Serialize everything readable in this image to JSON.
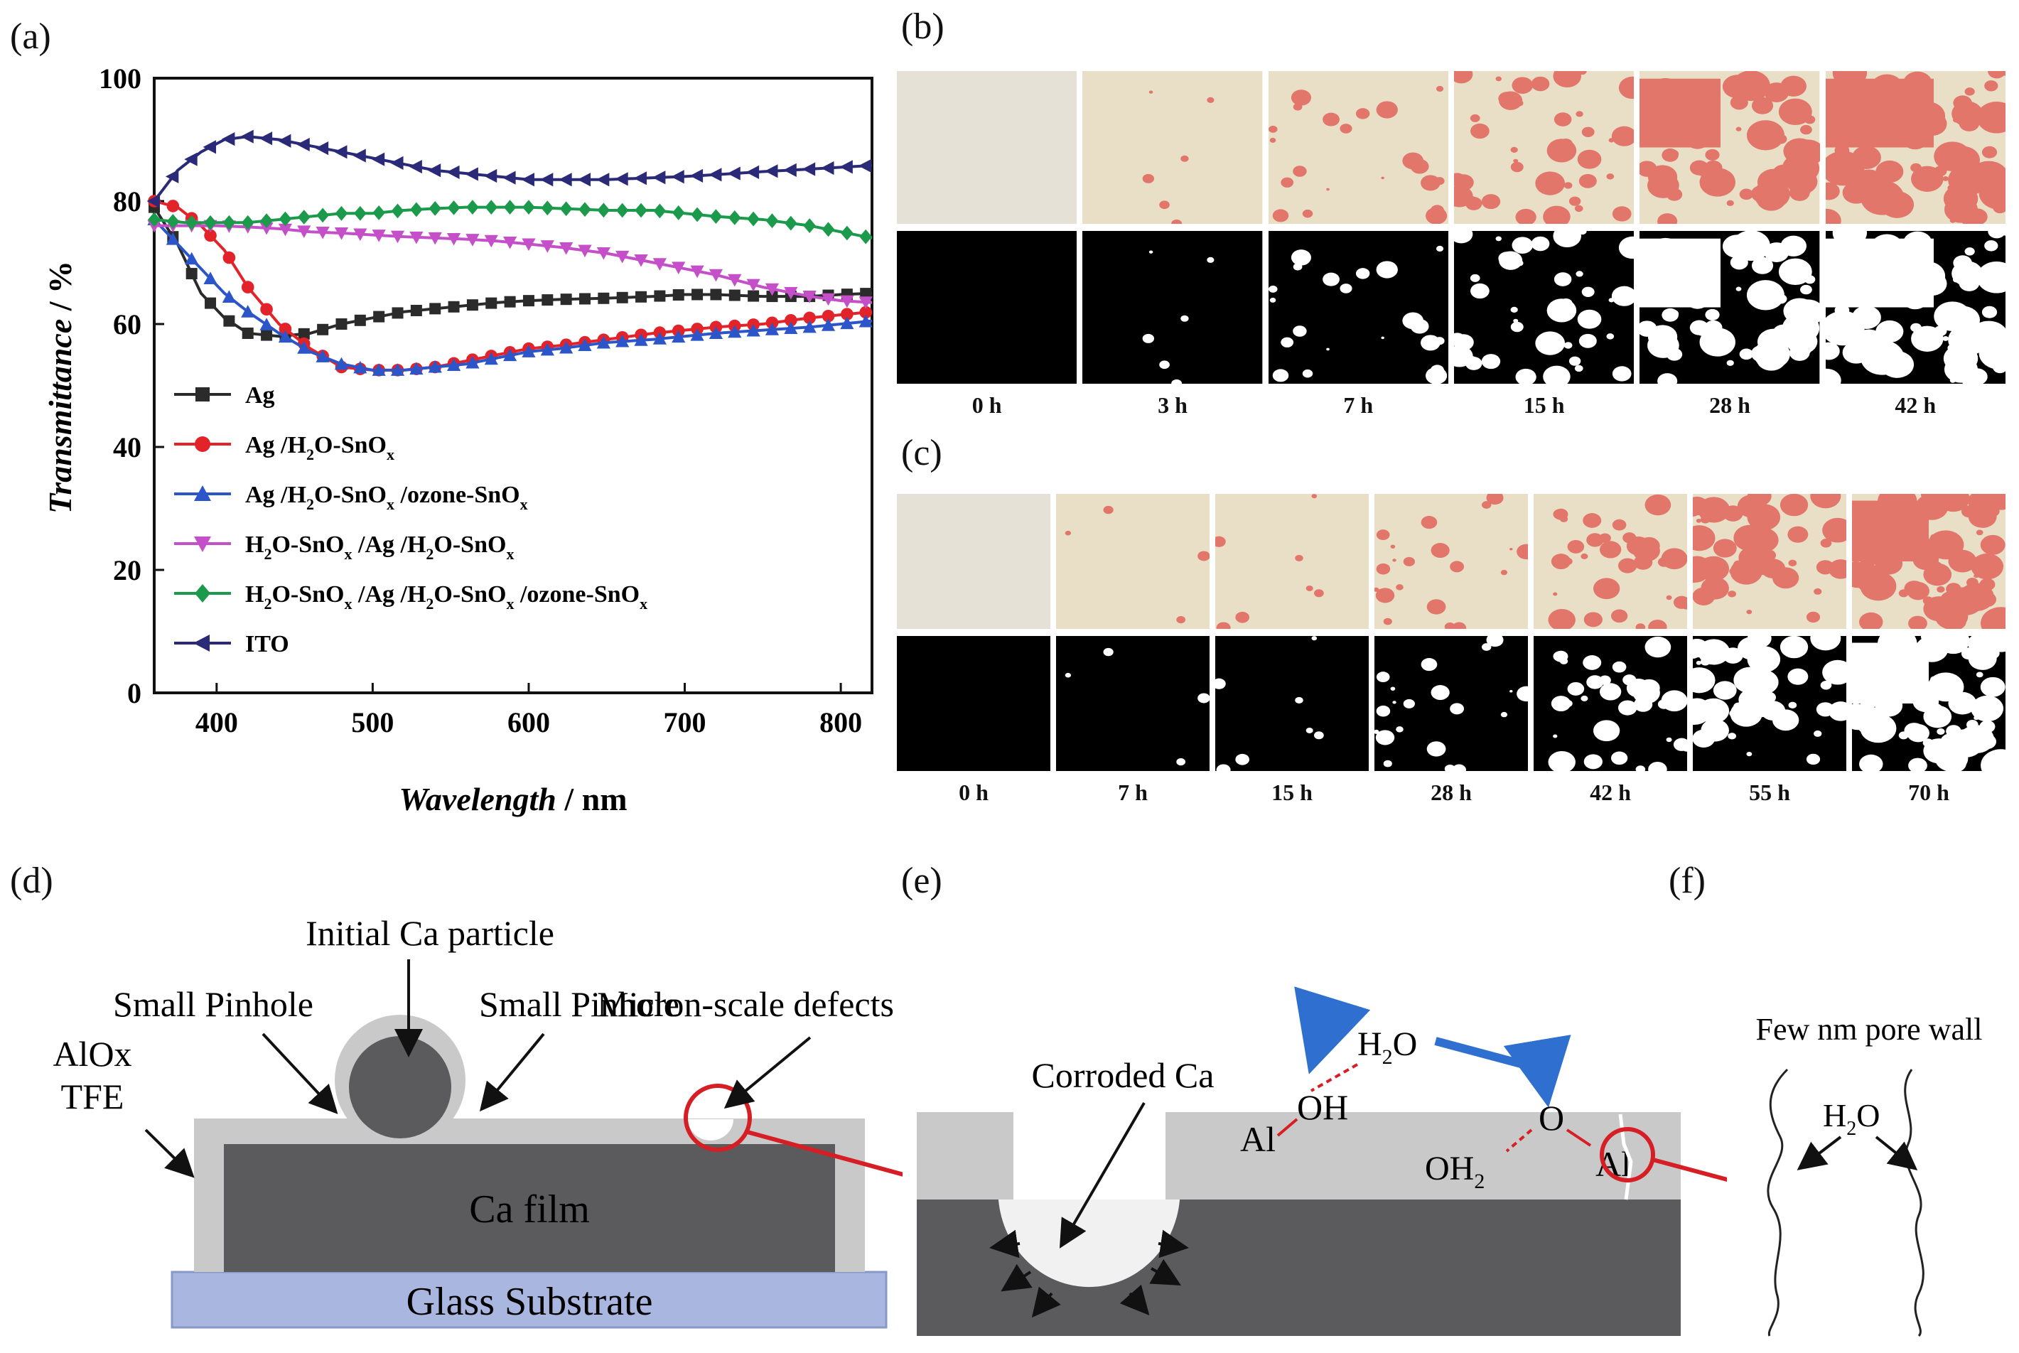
{
  "panel_labels": {
    "a": "(a)",
    "b": "(b)",
    "c": "(c)",
    "d": "(d)",
    "e": "(e)",
    "f": "(f)"
  },
  "chart_data": {
    "type": "line",
    "xlabel": "Wavelength",
    "xunit": " / nm",
    "ylabel": "Transmittance",
    "yunit": " / %",
    "xlim": [
      360,
      820
    ],
    "ylim": [
      0,
      100
    ],
    "xticks": [
      400,
      500,
      600,
      700,
      800
    ],
    "yticks": [
      0,
      20,
      40,
      60,
      80,
      100
    ],
    "series": [
      {
        "name": "Ag",
        "label_html": "Ag",
        "color": "#2b2b2b",
        "marker": "square",
        "x": [
          360,
          375,
          390,
          405,
          420,
          440,
          460,
          480,
          500,
          520,
          540,
          560,
          580,
          600,
          620,
          650,
          680,
          700,
          720,
          750,
          780,
          800,
          820
        ],
        "y": [
          79,
          73,
          65,
          61,
          58.5,
          58,
          58.5,
          60,
          61,
          62,
          62.5,
          63,
          63.5,
          63.8,
          64,
          64.2,
          64.5,
          64.8,
          64.8,
          64.5,
          64.5,
          64.8,
          65
        ]
      },
      {
        "name": "Ag /H2O-SnOx",
        "color": "#e3232a",
        "marker": "circle",
        "x": [
          360,
          375,
          390,
          405,
          420,
          440,
          460,
          480,
          500,
          520,
          540,
          560,
          580,
          600,
          620,
          650,
          680,
          700,
          720,
          750,
          780,
          800,
          820
        ],
        "y": [
          80,
          79,
          76,
          72,
          66,
          60,
          56,
          53,
          52.5,
          52.5,
          53,
          54,
          55,
          56,
          56.5,
          57.5,
          58.5,
          59,
          59.5,
          60,
          61,
          61.5,
          62
        ]
      },
      {
        "name": "Ag /H2O-SnOx /ozone-SnOx",
        "color": "#2b55c9",
        "marker": "triangle-up",
        "x": [
          360,
          375,
          390,
          405,
          420,
          440,
          460,
          480,
          500,
          520,
          540,
          560,
          580,
          600,
          620,
          650,
          680,
          700,
          720,
          750,
          780,
          800,
          820
        ],
        "y": [
          77,
          73,
          69,
          65,
          62,
          58.5,
          55.5,
          53.5,
          52.5,
          52.5,
          53,
          53.5,
          54.5,
          55.5,
          56,
          57,
          57.5,
          58,
          58.5,
          59,
          59.5,
          60,
          60.5
        ]
      },
      {
        "name": "H2O-SnOx /Ag /H2O-SnOx",
        "color": "#c44fc8",
        "marker": "triangle-down",
        "x": [
          360,
          380,
          400,
          420,
          440,
          460,
          480,
          500,
          520,
          540,
          560,
          580,
          600,
          620,
          650,
          680,
          700,
          720,
          750,
          780,
          800,
          820
        ],
        "y": [
          76,
          76,
          76,
          75.8,
          75.5,
          75,
          74.8,
          74.5,
          74.2,
          74,
          73.8,
          73.5,
          73,
          72.5,
          71.5,
          70,
          69,
          68,
          66,
          64.5,
          63.8,
          63.5
        ]
      },
      {
        "name": "H2O-SnOx /Ag /H2O-SnOx /ozone-SnOx",
        "color": "#1b9a4b",
        "marker": "diamond",
        "x": [
          360,
          380,
          400,
          420,
          440,
          460,
          480,
          500,
          520,
          540,
          560,
          580,
          600,
          620,
          650,
          680,
          700,
          720,
          750,
          780,
          800,
          820
        ],
        "y": [
          77,
          76.5,
          76.5,
          76.5,
          77,
          77.5,
          78,
          78,
          78.5,
          78.8,
          79,
          79,
          79,
          78.8,
          78.5,
          78.5,
          78,
          77.5,
          77,
          76,
          75,
          74
        ]
      },
      {
        "name": "ITO",
        "color": "#2a2a78",
        "marker": "triangle-left",
        "x": [
          360,
          375,
          390,
          405,
          420,
          440,
          460,
          480,
          500,
          520,
          540,
          560,
          580,
          600,
          620,
          650,
          680,
          700,
          720,
          750,
          780,
          800,
          820
        ],
        "y": [
          80,
          85,
          88,
          90,
          90.5,
          90,
          89,
          88,
          87,
          86,
          85,
          84.5,
          84,
          83.5,
          83.5,
          83.5,
          83.8,
          84,
          84.3,
          84.8,
          85.2,
          85.5,
          85.8
        ]
      }
    ],
    "legend_placement": "lower-left"
  },
  "legend_text": [
    {
      "main": "Ag"
    },
    {
      "main": "Ag /H",
      "sub1": "2",
      "mid": "O-SnO",
      "sub2": "x"
    },
    {
      "main": "Ag /H",
      "sub1": "2",
      "mid": "O-SnO",
      "sub2": "x",
      "tail": " /ozone-SnO",
      "sub3": "x"
    },
    {
      "main": "H",
      "sub1": "2",
      "mid": "O-SnO",
      "sub2": "x",
      "tail": " /Ag /H",
      "sub3": "2",
      "tail2": "O-SnO",
      "sub4": "x"
    },
    {
      "main": "H",
      "sub1": "2",
      "mid": "O-SnO",
      "sub2": "x",
      "tail": " /Ag /H",
      "sub3": "2",
      "tail2": "O-SnO",
      "sub4": "x",
      "tail3": " /ozone-SnO",
      "sub5": "x"
    },
    {
      "main": "ITO"
    }
  ],
  "b_times": [
    "0 h",
    "3 h",
    "7 h",
    "15 h",
    "28 h",
    "42 h"
  ],
  "c_times": [
    "0 h",
    "7 h",
    "15 h",
    "28 h",
    "42 h",
    "55 h",
    "70 h"
  ],
  "diagram_d": {
    "initial_ca_particle": "Initial Ca particle",
    "small_pinhole_left": "Small Pinhole",
    "small_pinhole_right": "Small Pinhole",
    "micron_defects": "Micron-scale defects",
    "alox": "AlOx",
    "tfe": "TFE",
    "ca_film": "Ca film",
    "glass_substrate": "Glass Substrate"
  },
  "diagram_e": {
    "corroded_ca": "Corroded Ca",
    "h2o_h": "H",
    "h2o_sub": "2",
    "h2o_o": "O",
    "al_left": "Al",
    "oh": "OH",
    "o": "O",
    "oh2_oh": "OH",
    "oh2_sub": "2",
    "al_right": "Al"
  },
  "diagram_f": {
    "pore_wall": "Few nm pore wall",
    "h2o_h": "H",
    "h2o_sub": "2",
    "h2o_o": "O"
  },
  "colors": {
    "ca_film": "#5b5a5c",
    "alox": "#c9c9c9",
    "glass": "#a9b7e0",
    "red": "#d61e25",
    "blue": "#2e6fd0",
    "tile_beige": "#e9dfc6",
    "tile_red": "#e2766b"
  }
}
